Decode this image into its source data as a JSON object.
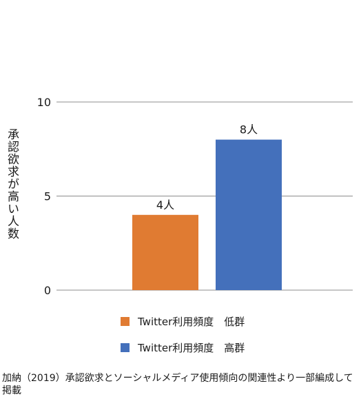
{
  "chart_data": {
    "type": "bar",
    "categories": [
      "Twitter利用頻度　低群",
      "Twitter利用頻度　高群"
    ],
    "values": [
      4,
      8
    ],
    "data_labels": [
      "4人",
      "8人"
    ],
    "colors": [
      "#E07B32",
      "#4470BB"
    ],
    "ylabel": "承認欲求が高い人数",
    "ylim": [
      0,
      10
    ],
    "yticks": [
      0,
      5,
      10
    ],
    "grid": true,
    "legend": "bottom"
  },
  "source_note": "加納（2019）承認欲求とソーシャルメディア使用傾向の関連性より一部編成して掲載"
}
